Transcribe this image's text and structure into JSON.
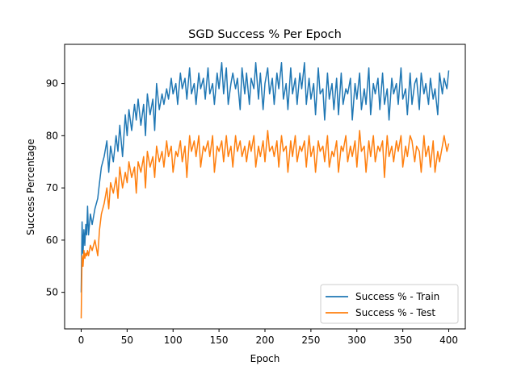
{
  "chart_data": {
    "type": "line",
    "title": "SGD Success % Per Epoch",
    "xlabel": "Epoch",
    "ylabel": "Success Percentage",
    "xlim": [
      -18,
      418
    ],
    "ylim": [
      43,
      97.5
    ],
    "xticks": [
      0,
      50,
      100,
      150,
      200,
      250,
      300,
      350,
      400
    ],
    "yticks": [
      50,
      60,
      70,
      80,
      90
    ],
    "grid": false,
    "legend_position": "lower-right",
    "series": [
      {
        "name": "Success % - Train",
        "color": "#1f77b4",
        "x": [
          0,
          1,
          2,
          3,
          4,
          5,
          6,
          7,
          8,
          10,
          12,
          15,
          18,
          20,
          22,
          25,
          28,
          30,
          32,
          35,
          38,
          40,
          42,
          45,
          48,
          50,
          52,
          55,
          58,
          60,
          62,
          65,
          68,
          70,
          72,
          75,
          78,
          80,
          82,
          85,
          88,
          90,
          93,
          95,
          98,
          100,
          103,
          105,
          108,
          110,
          113,
          115,
          118,
          120,
          123,
          125,
          128,
          130,
          133,
          135,
          138,
          140,
          143,
          145,
          148,
          150,
          153,
          155,
          158,
          160,
          163,
          165,
          168,
          170,
          173,
          175,
          178,
          180,
          183,
          185,
          188,
          190,
          193,
          195,
          198,
          200,
          203,
          205,
          208,
          210,
          213,
          215,
          218,
          220,
          223,
          225,
          228,
          230,
          233,
          235,
          238,
          240,
          243,
          245,
          248,
          250,
          253,
          255,
          258,
          260,
          263,
          265,
          268,
          270,
          273,
          275,
          278,
          280,
          283,
          285,
          288,
          290,
          293,
          295,
          298,
          300,
          303,
          305,
          308,
          310,
          313,
          315,
          318,
          320,
          323,
          325,
          328,
          330,
          333,
          335,
          338,
          340,
          343,
          345,
          348,
          350,
          353,
          355,
          358,
          360,
          363,
          365,
          368,
          370,
          373,
          375,
          378,
          380,
          383,
          385,
          388,
          390,
          393,
          395,
          398,
          400
        ],
        "values": [
          50,
          63.5,
          57.5,
          62,
          59,
          63,
          61,
          66.5,
          61,
          65,
          63,
          66,
          68,
          71,
          74,
          76,
          79,
          73,
          78,
          75,
          80,
          77,
          82,
          76,
          84,
          80,
          85,
          81,
          86,
          83,
          87,
          82,
          86,
          80,
          88,
          84,
          87,
          81,
          90,
          85,
          88,
          86,
          89,
          87,
          91,
          88,
          90,
          86,
          92,
          89,
          91,
          87,
          93,
          88,
          90,
          86,
          92,
          89,
          91,
          87,
          93,
          88,
          90,
          86,
          92,
          89,
          94,
          88,
          93,
          86,
          90,
          92,
          89,
          91,
          85,
          93,
          88,
          92,
          86,
          91,
          89,
          94,
          87,
          92,
          85,
          90,
          93,
          88,
          91,
          86,
          92,
          89,
          94,
          87,
          90,
          85,
          93,
          88,
          91,
          86,
          92,
          89,
          94,
          86,
          91,
          87,
          90,
          84,
          93,
          88,
          89,
          83,
          92,
          87,
          90,
          85,
          91,
          84,
          92,
          86,
          89,
          88,
          91,
          83,
          90,
          87,
          92,
          85,
          89,
          86,
          93,
          84,
          90,
          88,
          91,
          85,
          92,
          86,
          89,
          83,
          91,
          88,
          90,
          86,
          93,
          87,
          89,
          84,
          92,
          86,
          90,
          91,
          85,
          92,
          88,
          90,
          86,
          91,
          87,
          89,
          84,
          92,
          88,
          91,
          89,
          92.5
        ]
      },
      {
        "name": "Success % - Test",
        "color": "#ff7f0e",
        "x": [
          0,
          1,
          2,
          3,
          4,
          5,
          6,
          7,
          8,
          10,
          12,
          15,
          18,
          20,
          22,
          25,
          28,
          30,
          32,
          35,
          38,
          40,
          42,
          45,
          48,
          50,
          52,
          55,
          58,
          60,
          62,
          65,
          68,
          70,
          72,
          75,
          78,
          80,
          82,
          85,
          88,
          90,
          93,
          95,
          98,
          100,
          103,
          105,
          108,
          110,
          113,
          115,
          118,
          120,
          123,
          125,
          128,
          130,
          133,
          135,
          138,
          140,
          143,
          145,
          148,
          150,
          153,
          155,
          158,
          160,
          163,
          165,
          168,
          170,
          173,
          175,
          178,
          180,
          183,
          185,
          188,
          190,
          193,
          195,
          198,
          200,
          203,
          205,
          208,
          210,
          213,
          215,
          218,
          220,
          223,
          225,
          228,
          230,
          233,
          235,
          238,
          240,
          243,
          245,
          248,
          250,
          253,
          255,
          258,
          260,
          263,
          265,
          268,
          270,
          273,
          275,
          278,
          280,
          283,
          285,
          288,
          290,
          293,
          295,
          298,
          300,
          303,
          305,
          308,
          310,
          313,
          315,
          318,
          320,
          323,
          325,
          328,
          330,
          333,
          335,
          338,
          340,
          343,
          345,
          348,
          350,
          353,
          355,
          358,
          360,
          363,
          365,
          368,
          370,
          373,
          375,
          378,
          380,
          383,
          385,
          388,
          390,
          393,
          395,
          398,
          400
        ],
        "values": [
          45,
          57,
          55,
          58,
          56.5,
          57.5,
          57,
          58,
          57,
          59,
          58,
          60,
          57,
          62,
          65,
          67,
          70,
          66,
          71,
          69,
          72,
          68,
          74,
          70,
          73,
          71,
          75,
          72,
          74,
          69,
          75,
          73,
          76,
          70,
          77,
          74,
          76,
          72,
          78,
          75,
          77,
          74,
          79,
          76,
          78,
          73,
          77,
          76,
          79,
          75,
          78,
          72,
          80,
          77,
          79,
          76,
          80,
          74,
          78,
          77,
          79,
          76,
          80,
          73,
          78,
          77,
          79,
          75,
          80,
          76,
          78,
          74,
          80,
          77,
          79,
          76,
          78,
          75,
          79,
          77,
          80,
          74,
          78,
          76,
          79,
          75,
          81,
          77,
          78,
          76,
          79,
          74,
          80,
          77,
          78,
          73,
          79,
          76,
          80,
          75,
          78,
          77,
          79,
          74,
          80,
          76,
          78,
          73,
          79,
          77,
          78,
          75,
          80,
          74,
          77,
          76,
          79,
          73,
          78,
          77,
          80,
          75,
          78,
          76,
          79,
          74,
          81,
          77,
          78,
          73,
          79,
          76,
          80,
          75,
          78,
          77,
          79,
          72,
          80,
          76,
          78,
          75,
          79,
          77,
          80,
          74,
          78,
          76,
          80,
          79,
          75,
          78,
          77,
          73,
          80,
          76,
          78,
          74,
          79,
          73,
          77,
          75,
          78,
          80,
          77,
          78.5
        ]
      }
    ]
  }
}
